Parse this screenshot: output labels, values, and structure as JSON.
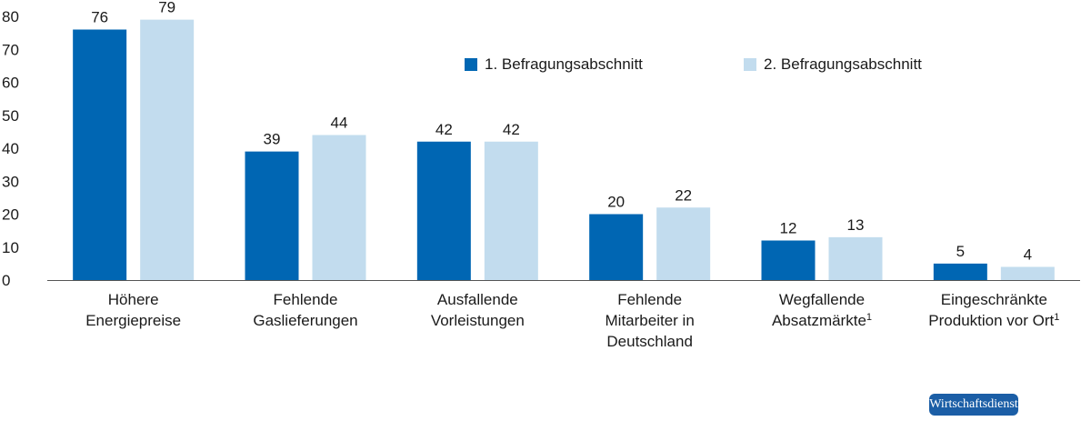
{
  "chart_data": {
    "type": "bar",
    "categories": [
      {
        "lines": [
          "Höhere",
          "Energiepreise"
        ],
        "footnote": ""
      },
      {
        "lines": [
          "Fehlende",
          "Gaslieferungen"
        ],
        "footnote": ""
      },
      {
        "lines": [
          "Ausfallende",
          "Vorleistungen"
        ],
        "footnote": ""
      },
      {
        "lines": [
          "Fehlende",
          "Mitarbeiter in",
          "Deutschland"
        ],
        "footnote": ""
      },
      {
        "lines": [
          "Wegfallende",
          "Absatzmärkte"
        ],
        "footnote": "1"
      },
      {
        "lines": [
          "Eingeschränkte",
          "Produktion vor Ort"
        ],
        "footnote": "1"
      }
    ],
    "series": [
      {
        "name": "1. Befragungsabschnitt",
        "color": "#0066b3",
        "values": [
          76,
          39,
          42,
          20,
          12,
          5
        ]
      },
      {
        "name": "2. Befragungsabschnitt",
        "color": "#c2dcee",
        "values": [
          79,
          44,
          42,
          22,
          13,
          4
        ]
      }
    ],
    "ylim": [
      0,
      80
    ],
    "yticks": [
      0,
      10,
      20,
      30,
      40,
      50,
      60,
      70,
      80
    ],
    "legend_position": "top-right",
    "grid": false
  },
  "watermark": "Wirtschaftsdienst"
}
